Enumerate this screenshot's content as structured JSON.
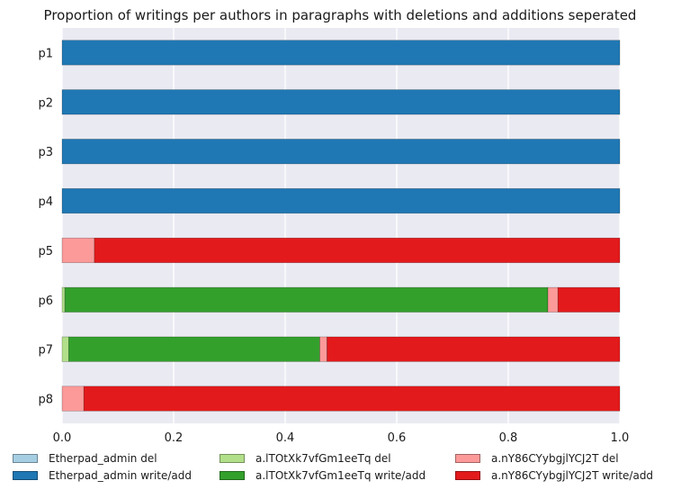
{
  "chart_data": {
    "type": "bar",
    "orientation": "horizontal",
    "stacked": true,
    "title": "Proportion of writings per authors in paragraphs with deletions and additions seperated",
    "xlabel": "",
    "ylabel": "",
    "xlim": [
      0,
      1
    ],
    "xticks": [
      "0.0",
      "0.2",
      "0.4",
      "0.6",
      "0.8",
      "1.0"
    ],
    "categories": [
      "p1",
      "p2",
      "p3",
      "p4",
      "p5",
      "p6",
      "p7",
      "p8"
    ],
    "grid": true,
    "legend_position": "bottom",
    "background": "#eaeaf2",
    "series": [
      {
        "name": "Etherpad_admin del",
        "color": "#a6cee3",
        "values": [
          0,
          0,
          0,
          0,
          0,
          0,
          0,
          0
        ]
      },
      {
        "name": "Etherpad_admin write/add",
        "color": "#1f78b4",
        "values": [
          1.0,
          1.0,
          1.0,
          1.0,
          0,
          0,
          0,
          0
        ]
      },
      {
        "name": "a.lTOtXk7vfGm1eeTq del",
        "color": "#b2df8a",
        "values": [
          0,
          0,
          0,
          0,
          0,
          0.005,
          0.012,
          0
        ]
      },
      {
        "name": "a.lTOtXk7vfGm1eeTq write/add",
        "color": "#33a02c",
        "values": [
          0,
          0,
          0,
          0,
          0,
          0.866,
          0.45,
          0
        ]
      },
      {
        "name": "a.nY86CYybgjlYCJ2T del",
        "color": "#fb9a99",
        "values": [
          0,
          0,
          0,
          0,
          0.058,
          0.018,
          0.013,
          0.039
        ]
      },
      {
        "name": "a.nY86CYybgjlYCJ2T write/add",
        "color": "#e31a1c",
        "values": [
          0,
          0,
          0,
          0,
          0.942,
          0.111,
          0.525,
          0.961
        ]
      }
    ]
  }
}
